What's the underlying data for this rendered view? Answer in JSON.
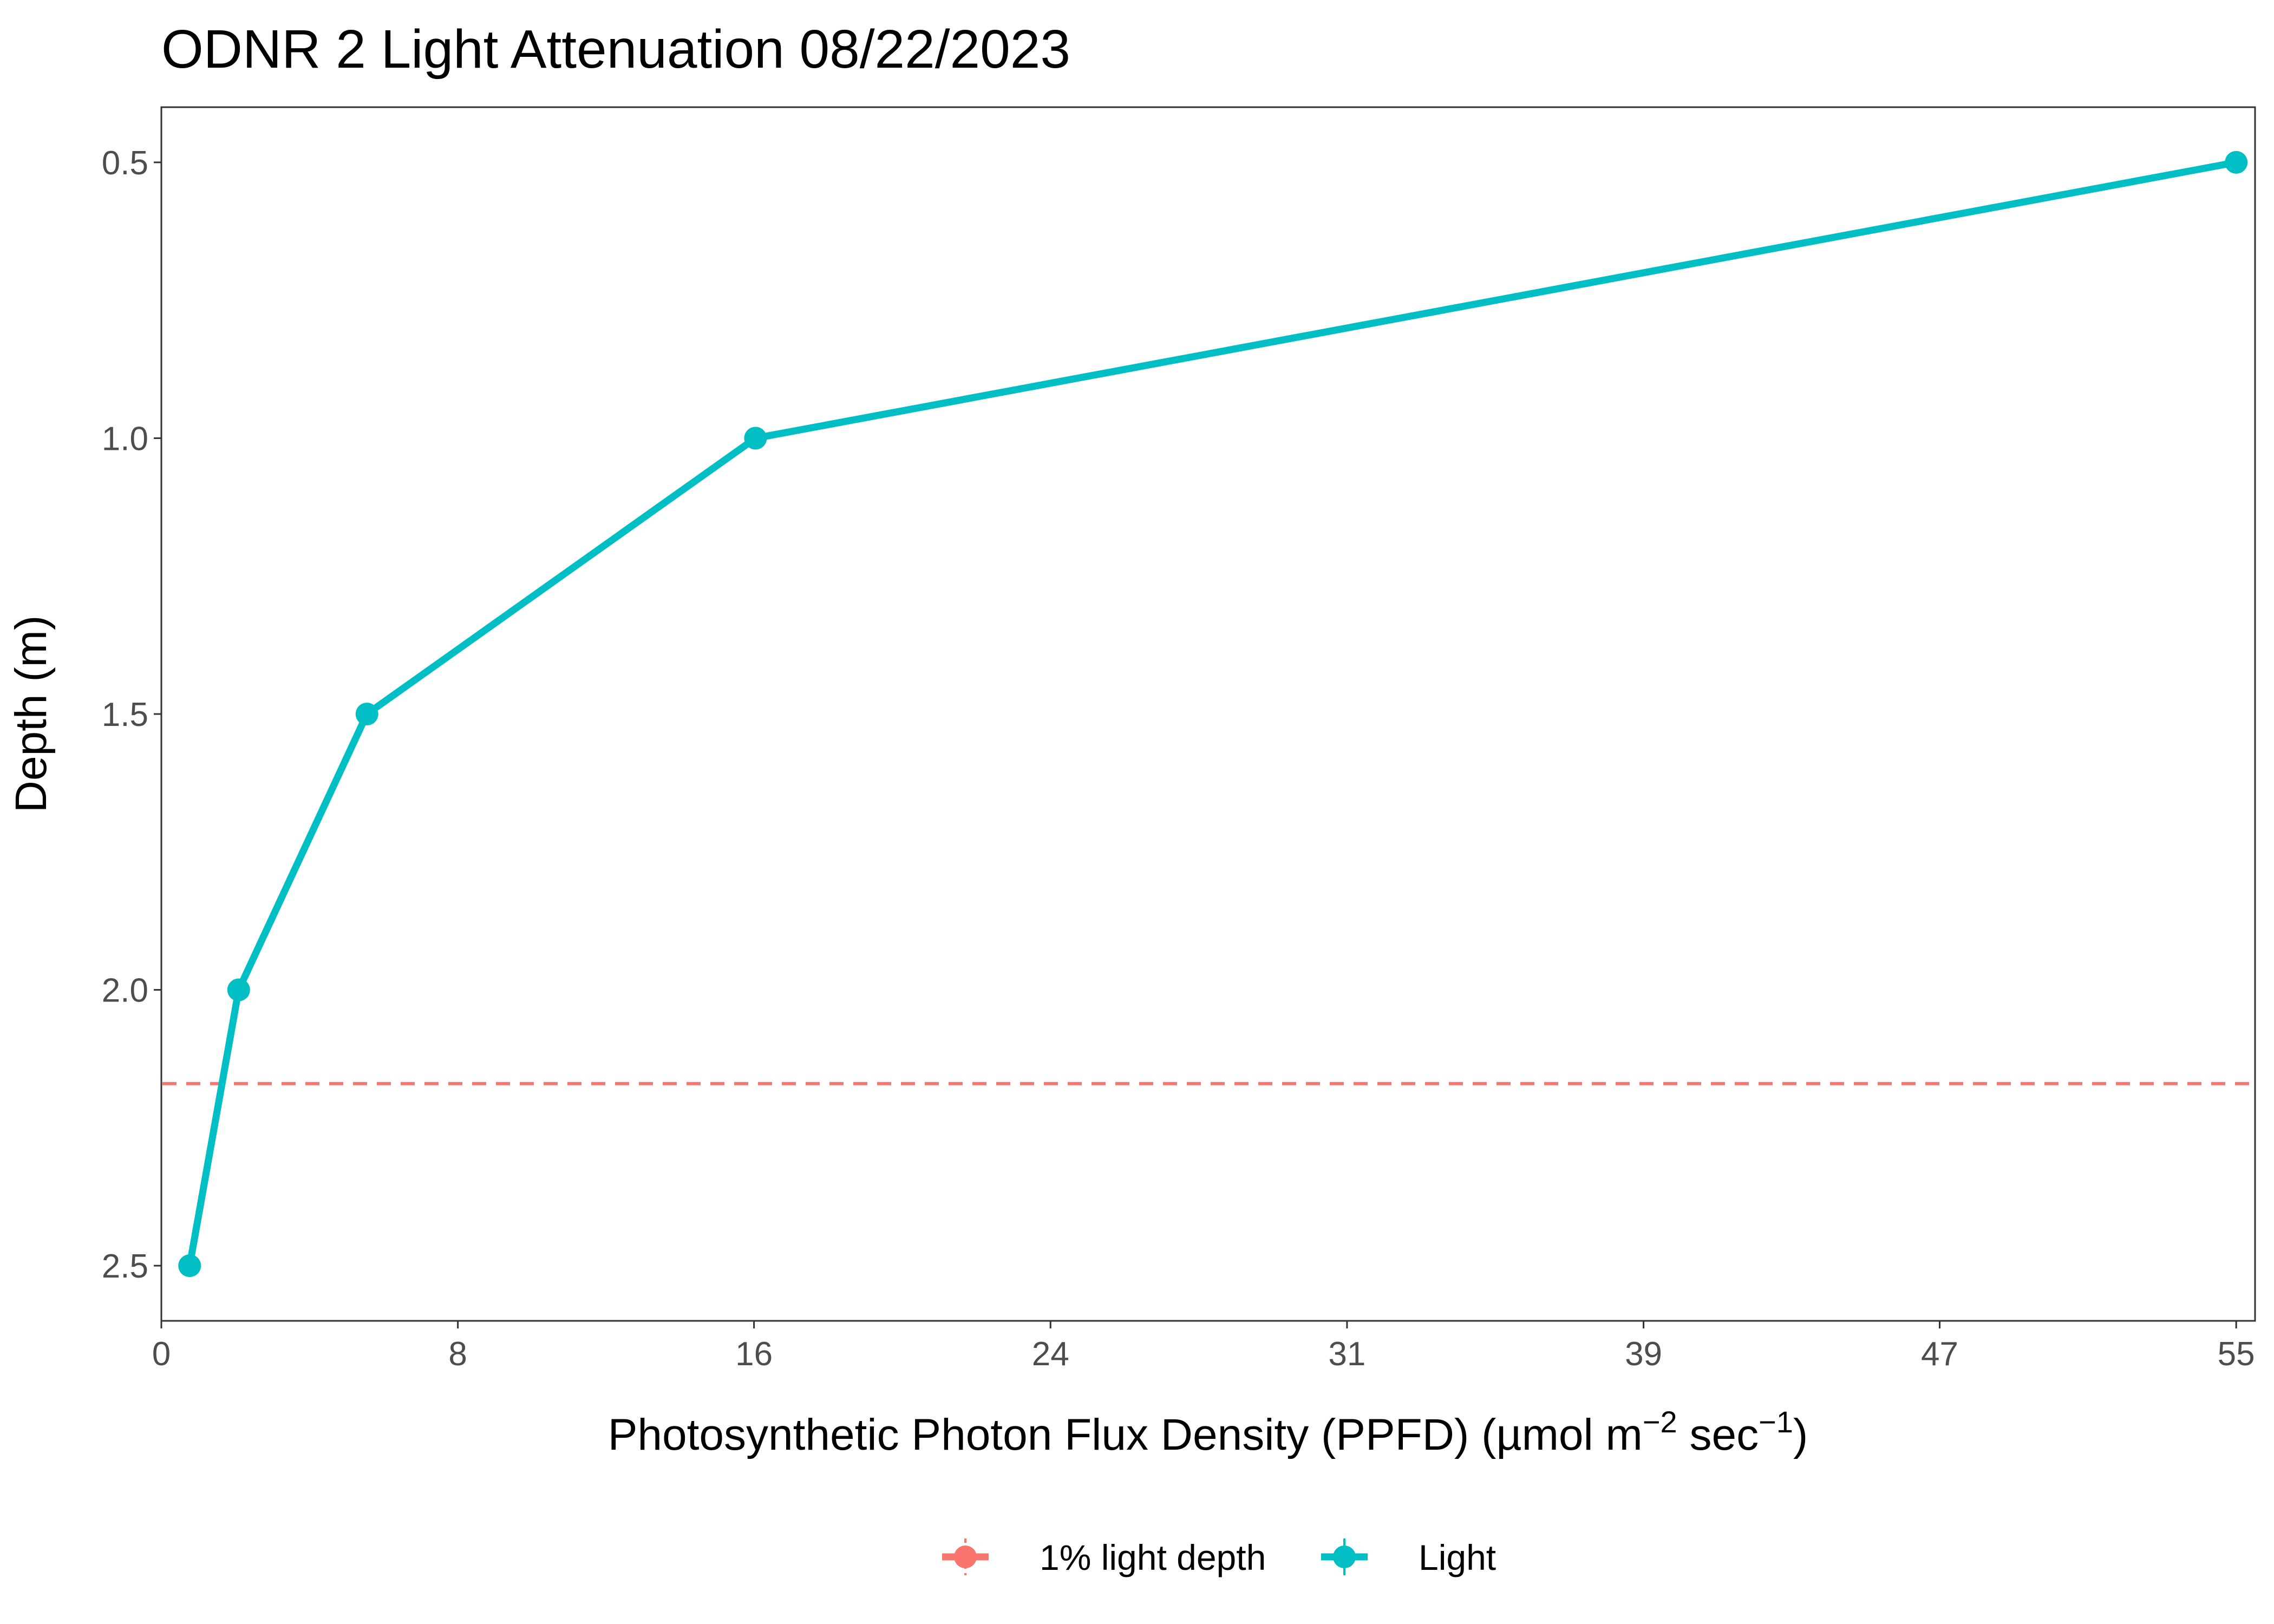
{
  "chart_data": {
    "type": "line",
    "title": "ODNR 2 Light Attenuation 08/22/2023",
    "xlabel": {
      "prefix": "Photosynthetic Photon Flux Density (PPFD) (µmol m",
      "sup1": "−2",
      "middle": " sec",
      "sup2": "−1",
      "suffix": ")"
    },
    "ylabel": "Depth (m)",
    "xlim": [
      0,
      55.5
    ],
    "ylim": [
      2.6,
      0.4
    ],
    "y_reversed": true,
    "x_ticks": [
      {
        "value": 0,
        "label": "0"
      },
      {
        "value": 7.86,
        "label": "8"
      },
      {
        "value": 15.71,
        "label": "16"
      },
      {
        "value": 23.57,
        "label": "24"
      },
      {
        "value": 31.43,
        "label": "31"
      },
      {
        "value": 39.29,
        "label": "39"
      },
      {
        "value": 47.14,
        "label": "47"
      },
      {
        "value": 55.0,
        "label": "55"
      }
    ],
    "y_ticks": [
      {
        "value": 0.5,
        "label": "0.5"
      },
      {
        "value": 1.0,
        "label": "1.0"
      },
      {
        "value": 1.5,
        "label": "1.5"
      },
      {
        "value": 2.0,
        "label": "2.0"
      },
      {
        "value": 2.5,
        "label": "2.5"
      }
    ],
    "series": [
      {
        "name": "Light",
        "color": "#00BFC4",
        "points": [
          {
            "x": 55.0,
            "y": 0.5
          },
          {
            "x": 15.75,
            "y": 1.0
          },
          {
            "x": 5.45,
            "y": 1.5
          },
          {
            "x": 2.05,
            "y": 2.0
          },
          {
            "x": 0.75,
            "y": 2.5
          }
        ]
      }
    ],
    "reference_lines": [
      {
        "name": "1% light depth",
        "color": "#F8766D",
        "orientation": "horizontal",
        "y": 2.17,
        "style": "dashed"
      }
    ],
    "legend": {
      "position": "bottom",
      "items": [
        {
          "label": "1% light depth",
          "color": "#F8766D"
        },
        {
          "label": "Light",
          "color": "#00BFC4"
        }
      ]
    },
    "grid": false
  }
}
